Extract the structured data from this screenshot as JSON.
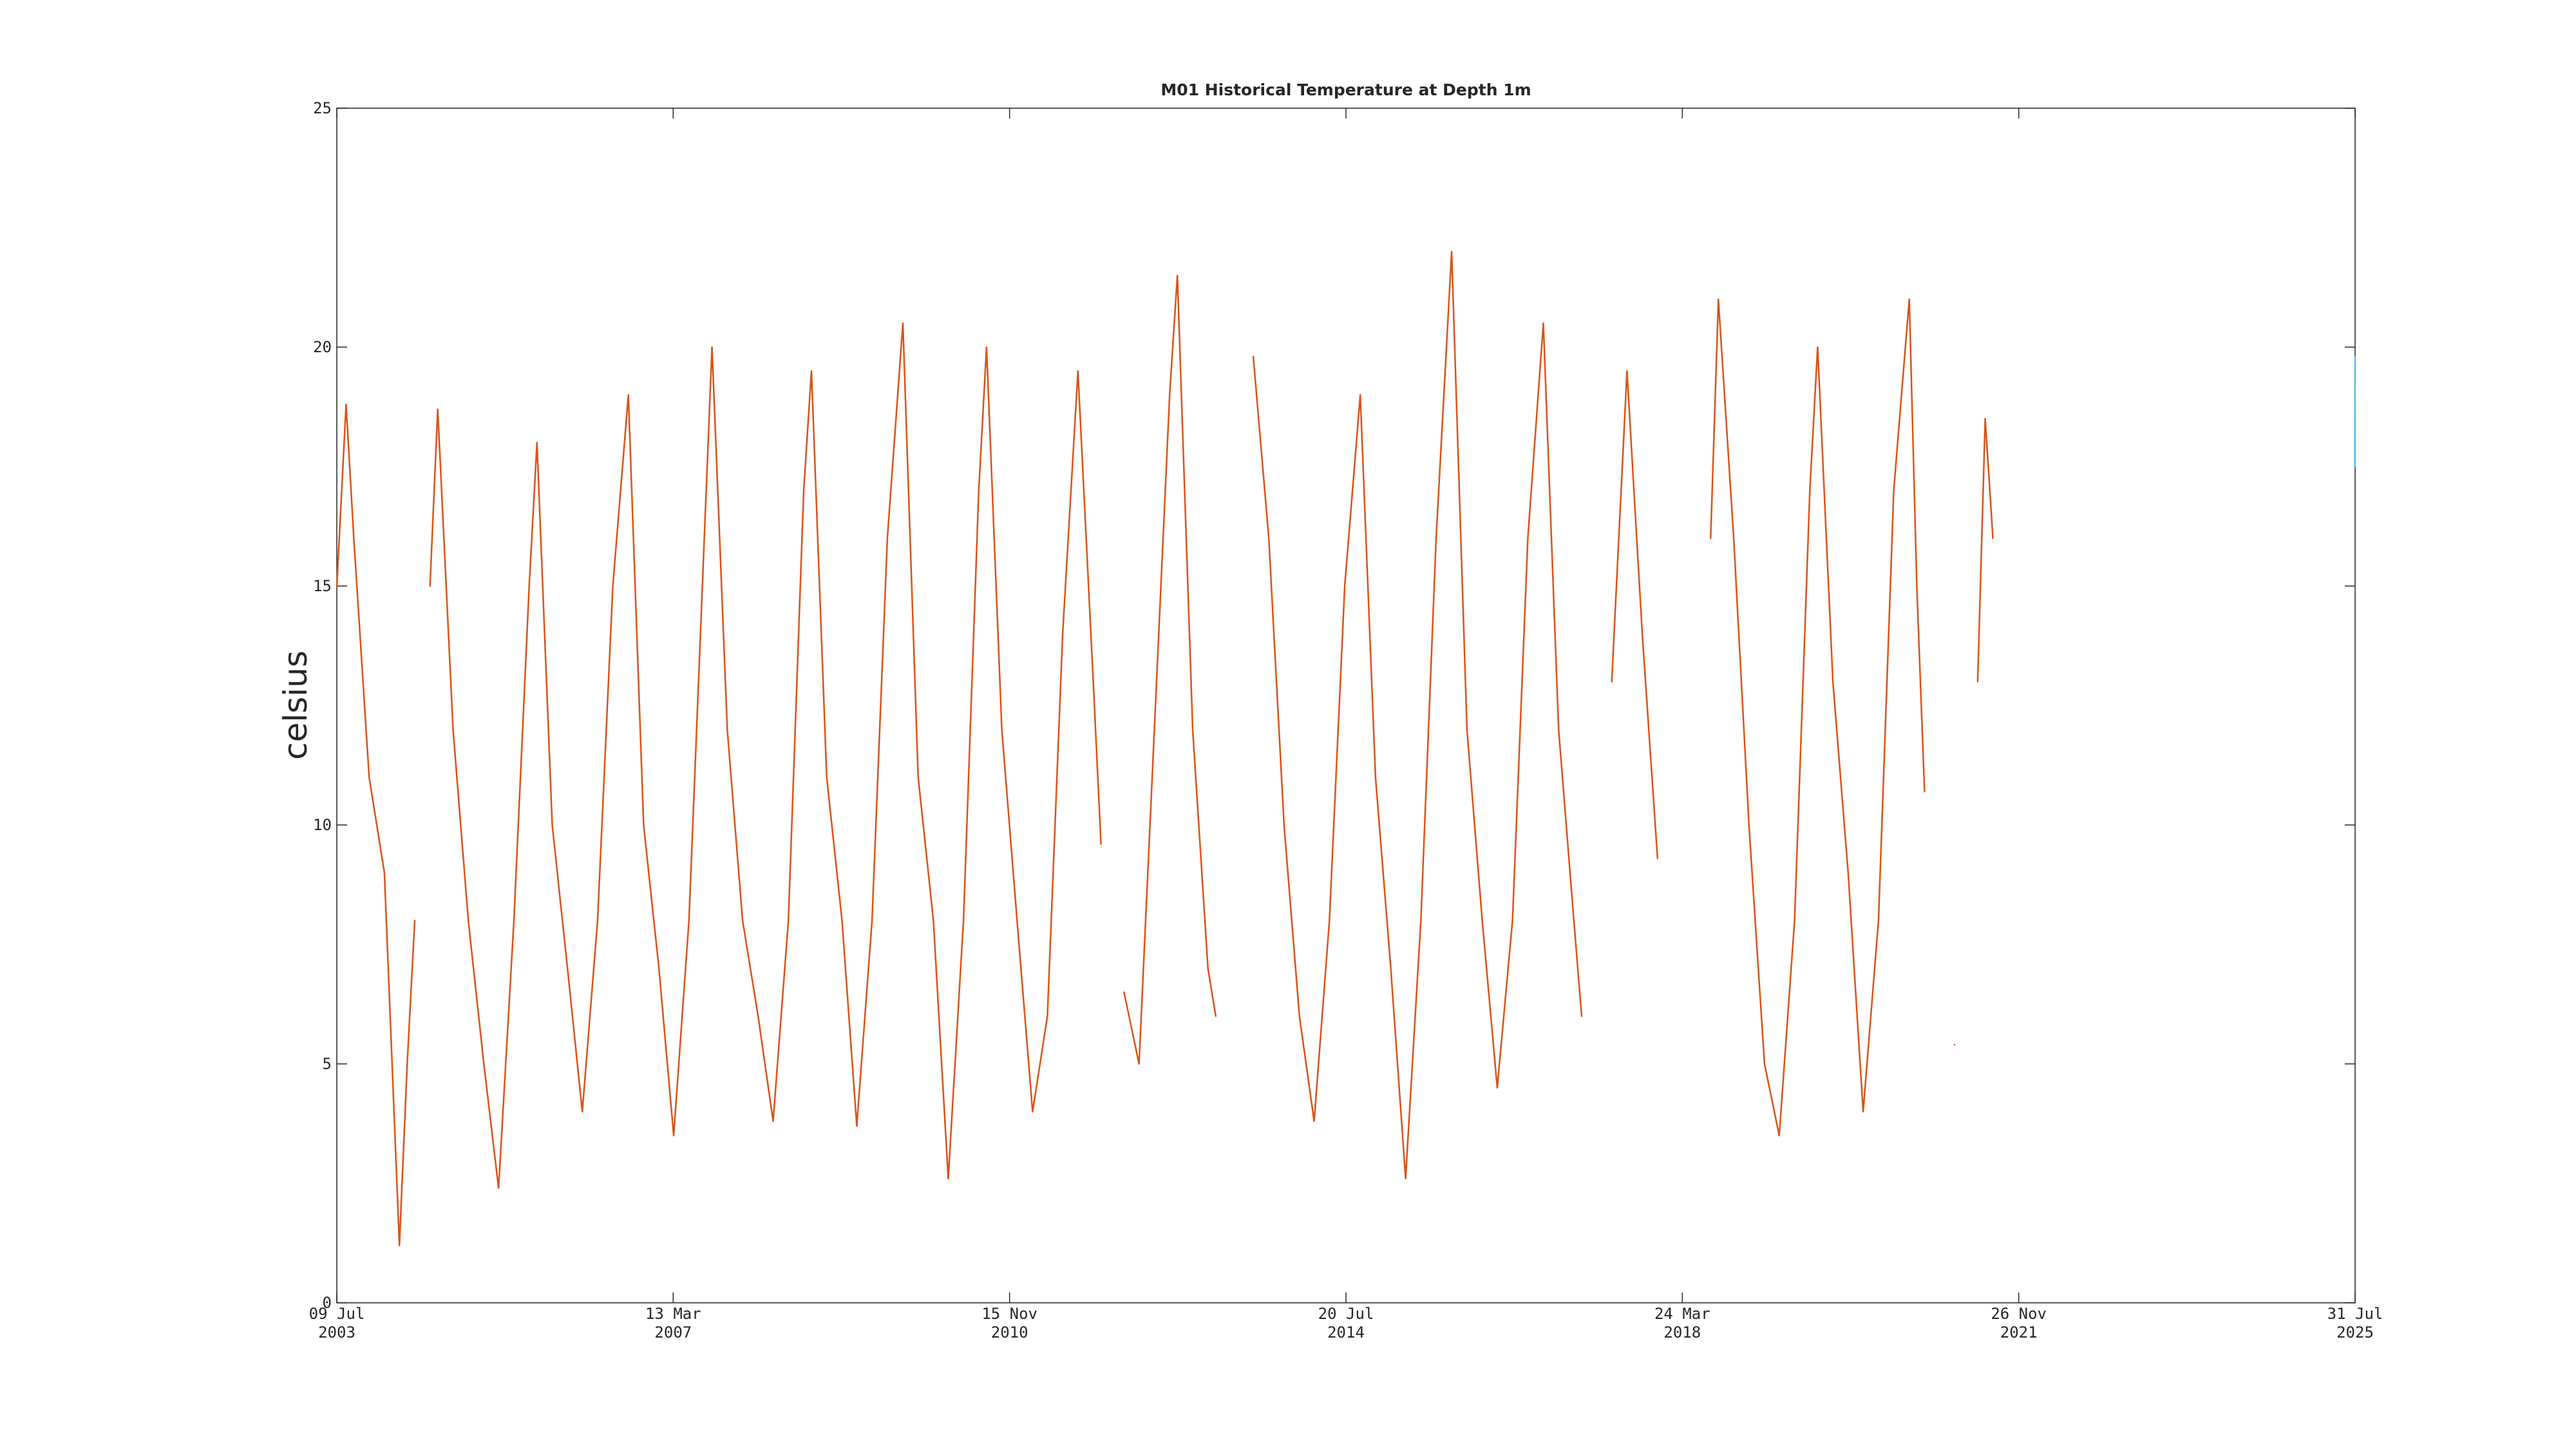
{
  "chart_data": {
    "type": "line",
    "title": "M01 Historical Temperature at Depth 1m",
    "ylabel": "celsius",
    "xlim": [
      "2003-07-09",
      "2025-07-31"
    ],
    "xticks": [
      {
        "value": "2003-07-09",
        "label": [
          "09 Jul",
          "2003"
        ]
      },
      {
        "value": "2007-03-13",
        "label": [
          "13 Mar",
          "2007"
        ]
      },
      {
        "value": "2010-11-15",
        "label": [
          "15 Nov",
          "2010"
        ]
      },
      {
        "value": "2014-07-20",
        "label": [
          "20 Jul",
          "2014"
        ]
      },
      {
        "value": "2018-03-24",
        "label": [
          "24 Mar",
          "2018"
        ]
      },
      {
        "value": "2021-11-26",
        "label": [
          "26 Nov",
          "2021"
        ]
      },
      {
        "value": "2025-07-31",
        "label": [
          "31 Jul",
          "2025"
        ]
      }
    ],
    "ylim": [
      0,
      25
    ],
    "yticks": [
      0,
      5,
      10,
      15,
      20,
      25
    ],
    "series": [
      {
        "color": "#d95319",
        "x": [
          "2003-07-09",
          "2003-08-15",
          "2003-09-15",
          "2003-11-15",
          "2004-01-15",
          "2004-03-15",
          "2004-04-15",
          "2004-05-15",
          "2004-06-15",
          "2004-07-15",
          "2004-08-15",
          "2004-10-15",
          "2004-12-15",
          "2005-02-15",
          "2005-04-15",
          "2005-06-15",
          "2005-08-15",
          "2005-09-15",
          "2005-11-15",
          "2006-01-15",
          "2006-03-15",
          "2006-05-15",
          "2006-07-15",
          "2006-09-15",
          "2006-11-15",
          "2007-01-15",
          "2007-03-15",
          "2007-05-15",
          "2007-07-15",
          "2007-08-15",
          "2007-10-15",
          "2007-12-15",
          "2008-02-15",
          "2008-04-15",
          "2008-06-15",
          "2008-08-15",
          "2008-09-15",
          "2008-11-15",
          "2009-01-15",
          "2009-03-15",
          "2009-05-15",
          "2009-07-15",
          "2009-09-15",
          "2009-11-15",
          "2010-01-15",
          "2010-03-15",
          "2010-05-15",
          "2010-07-15",
          "2010-08-15",
          "2010-10-15",
          "2010-12-15",
          "2011-02-15",
          "2011-04-15",
          "2011-06-15",
          "2011-08-15",
          "2011-10-15",
          "2011-11-15",
          "2012-01-01",
          "2012-02-15",
          "2012-04-15",
          "2012-06-15",
          "2012-08-15",
          "2012-09-15",
          "2012-11-15",
          "2013-01-15",
          "2013-02-15",
          "2013-05-01",
          "2013-07-15",
          "2013-09-15",
          "2013-11-15",
          "2014-01-15",
          "2014-03-15",
          "2014-05-15",
          "2014-07-15",
          "2014-09-15",
          "2014-11-15",
          "2015-01-15",
          "2015-03-15",
          "2015-05-15",
          "2015-07-15",
          "2015-09-15",
          "2015-11-15",
          "2016-01-15",
          "2016-03-15",
          "2016-05-15",
          "2016-07-15",
          "2016-09-15",
          "2016-11-15",
          "2017-01-15",
          "2017-02-15",
          "2017-04-15",
          "2017-06-15",
          "2017-08-15",
          "2017-10-15",
          "2017-12-15",
          "2018-04-15",
          "2018-07-15",
          "2018-08-15",
          "2018-10-15",
          "2018-12-15",
          "2019-02-15",
          "2019-04-15",
          "2019-06-15",
          "2019-08-15",
          "2019-09-15",
          "2019-11-15",
          "2020-01-15",
          "2020-03-15",
          "2020-05-15",
          "2020-07-15",
          "2020-09-15",
          "2020-10-15",
          "2020-11-15",
          "2021-01-15",
          "2021-03-15",
          "2021-05-01",
          "2021-06-15",
          "2021-07-15",
          "2021-08-15"
        ],
        "values": [
          15,
          18.8,
          16,
          11,
          9,
          1.2,
          5,
          8,
          null,
          15,
          18.7,
          12,
          8,
          5,
          2.4,
          8,
          15,
          18,
          10,
          7,
          4,
          8,
          15,
          19,
          10,
          7,
          3.5,
          8,
          16,
          20,
          12,
          8,
          6,
          3.8,
          8,
          17,
          19.5,
          11,
          8,
          3.7,
          8,
          16,
          20.5,
          11,
          8,
          2.6,
          8,
          17,
          20,
          12,
          8,
          4,
          6,
          14,
          19.5,
          13,
          9.6,
          null,
          6.5,
          5,
          12,
          19,
          21.5,
          12,
          7,
          6,
          null,
          19.8,
          16,
          10,
          6,
          3.8,
          8,
          15,
          19,
          11,
          7,
          2.6,
          8,
          16,
          22,
          12,
          8,
          4.5,
          8,
          16,
          20.5,
          12,
          8,
          6,
          null,
          13,
          19.5,
          14,
          9.3,
          null,
          16,
          21,
          16,
          10,
          5,
          3.5,
          8,
          17,
          20,
          13,
          9,
          4,
          8,
          17,
          21,
          15,
          10.7,
          null,
          5.4,
          null,
          13,
          18.5,
          16
        ]
      },
      {
        "color": "#4dbeee",
        "x": [
          "2025-07-30",
          "2025-07-31"
        ],
        "values": [
          17.5,
          19.8
        ]
      }
    ]
  }
}
